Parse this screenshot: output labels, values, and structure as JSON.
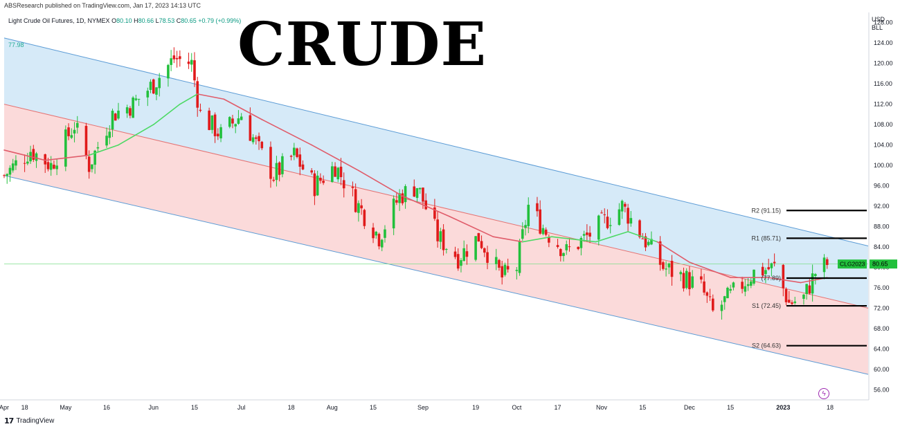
{
  "header": {
    "published": "ABSResearch published on TradingView.com, Jan 17, 2023 14:13 UTC",
    "symbol": "Light Crude Oil Futures, 1D, NYMEX",
    "ohlc": [
      {
        "label": "O",
        "value": "80.10"
      },
      {
        "label": "H",
        "value": "80.66"
      },
      {
        "label": "L",
        "value": "78.53"
      },
      {
        "label": "C",
        "value": "80.65"
      }
    ],
    "change": "+0.79 (+0.99%)",
    "ma_value": "77.98"
  },
  "title": "CRUDE",
  "unit": {
    "line1": "USD",
    "line2": "BLL"
  },
  "footer": {
    "brand": "TradingView",
    "logo": "17"
  },
  "icons": {
    "flash": "lightning-icon"
  },
  "colors": {
    "up": "#22c03c",
    "down": "#e01b1b",
    "ma": "#e05c6a",
    "ma_green": "#4cd964",
    "channel_line": "#5b9bd5",
    "upper_fill": "#d6eaf8",
    "lower_fill": "#fbdada",
    "last_price_bg": "#22c03c"
  },
  "chart_data": {
    "type": "candlestick",
    "yaxis": {
      "min": 54,
      "max": 130,
      "ticks": [
        "56.00",
        "60.00",
        "64.00",
        "68.00",
        "72.00",
        "76.00",
        "80.00",
        "84.00",
        "88.00",
        "92.00",
        "96.00",
        "100.00",
        "104.00",
        "108.00",
        "112.00",
        "116.00",
        "120.00",
        "124.00",
        "128.00"
      ]
    },
    "xaxis": {
      "start": "2022-04-11",
      "end": "2023-01-31",
      "ticks": [
        {
          "date": "2022-04-11",
          "label": "Apr"
        },
        {
          "date": "2022-04-18",
          "label": "18"
        },
        {
          "date": "2022-05-02",
          "label": "May"
        },
        {
          "date": "2022-05-16",
          "label": "16"
        },
        {
          "date": "2022-06-01",
          "label": "Jun"
        },
        {
          "date": "2022-06-15",
          "label": "15"
        },
        {
          "date": "2022-07-01",
          "label": "Jul"
        },
        {
          "date": "2022-07-18",
          "label": "18"
        },
        {
          "date": "2022-08-01",
          "label": "Aug"
        },
        {
          "date": "2022-08-15",
          "label": "15"
        },
        {
          "date": "2022-09-01",
          "label": "Sep"
        },
        {
          "date": "2022-09-19",
          "label": "19"
        },
        {
          "date": "2022-10-03",
          "label": "Oct"
        },
        {
          "date": "2022-10-17",
          "label": "17"
        },
        {
          "date": "2022-11-01",
          "label": "Nov"
        },
        {
          "date": "2022-11-15",
          "label": "15"
        },
        {
          "date": "2022-12-01",
          "label": "Dec"
        },
        {
          "date": "2022-12-15",
          "label": "15"
        },
        {
          "date": "2023-01-02",
          "label": "2023"
        },
        {
          "date": "2023-01-18",
          "label": "18"
        }
      ]
    },
    "price_path": [
      [
        "2022-04-11",
        98
      ],
      [
        "2022-04-20",
        103
      ],
      [
        "2022-04-27",
        100
      ],
      [
        "2022-05-05",
        108
      ],
      [
        "2022-05-10",
        100
      ],
      [
        "2022-05-18",
        110
      ],
      [
        "2022-05-25",
        112
      ],
      [
        "2022-06-01",
        116
      ],
      [
        "2022-06-08",
        121
      ],
      [
        "2022-06-14",
        120
      ],
      [
        "2022-06-17",
        110
      ],
      [
        "2022-06-24",
        106
      ],
      [
        "2022-07-01",
        110
      ],
      [
        "2022-07-07",
        103
      ],
      [
        "2022-07-12",
        98
      ],
      [
        "2022-07-19",
        102
      ],
      [
        "2022-07-26",
        96
      ],
      [
        "2022-08-02",
        100
      ],
      [
        "2022-08-10",
        92
      ],
      [
        "2022-08-17",
        86
      ],
      [
        "2022-08-24",
        94
      ],
      [
        "2022-08-30",
        96
      ],
      [
        "2022-09-06",
        86
      ],
      [
        "2022-09-13",
        82
      ],
      [
        "2022-09-20",
        86
      ],
      [
        "2022-09-28",
        78
      ],
      [
        "2022-10-03",
        80
      ],
      [
        "2022-10-07",
        92
      ],
      [
        "2022-10-13",
        87
      ],
      [
        "2022-10-20",
        83
      ],
      [
        "2022-10-27",
        86
      ],
      [
        "2022-11-04",
        90
      ],
      [
        "2022-11-08",
        92
      ],
      [
        "2022-11-15",
        86
      ],
      [
        "2022-11-22",
        80
      ],
      [
        "2022-11-29",
        78
      ],
      [
        "2022-12-05",
        76
      ],
      [
        "2022-12-09",
        71
      ],
      [
        "2022-12-16",
        75
      ],
      [
        "2022-12-23",
        79
      ],
      [
        "2022-12-30",
        80
      ],
      [
        "2023-01-04",
        73
      ],
      [
        "2023-01-09",
        74
      ],
      [
        "2023-01-13",
        79
      ],
      [
        "2023-01-17",
        80.65
      ]
    ],
    "ma_path": [
      [
        "2022-04-11",
        103
      ],
      [
        "2022-04-25",
        101
      ],
      [
        "2022-05-10",
        102
      ],
      [
        "2022-05-20",
        104
      ],
      [
        "2022-06-01",
        108
      ],
      [
        "2022-06-10",
        112
      ],
      [
        "2022-06-16",
        114
      ],
      [
        "2022-06-25",
        113
      ],
      [
        "2022-07-08",
        109
      ],
      [
        "2022-07-25",
        104
      ],
      [
        "2022-08-10",
        99
      ],
      [
        "2022-08-25",
        94
      ],
      [
        "2022-09-10",
        90
      ],
      [
        "2022-09-25",
        86
      ],
      [
        "2022-10-05",
        85
      ],
      [
        "2022-10-15",
        86
      ],
      [
        "2022-10-30",
        85
      ],
      [
        "2022-11-10",
        87
      ],
      [
        "2022-11-20",
        85
      ],
      [
        "2022-12-01",
        81
      ],
      [
        "2022-12-15",
        78
      ],
      [
        "2022-12-28",
        78
      ],
      [
        "2023-01-08",
        77
      ],
      [
        "2023-01-17",
        77.98
      ]
    ],
    "channel": {
      "upper": [
        [
          "2022-04-11",
          125
        ],
        [
          "2023-01-18",
          86
        ]
      ],
      "middle": [
        [
          "2022-04-11",
          112
        ],
        [
          "2023-01-31",
          72
        ]
      ],
      "lower": [
        [
          "2022-04-11",
          98
        ],
        [
          "2023-01-31",
          59
        ]
      ]
    },
    "levels": [
      {
        "label": "R2 (91.15)",
        "value": 91.15
      },
      {
        "label": "R1 (85.71)",
        "value": 85.71
      },
      {
        "label": "(77.89)",
        "value": 77.89
      },
      {
        "label": "S1 (72.45)",
        "value": 72.45
      },
      {
        "label": "S2 (64.63)",
        "value": 64.63
      }
    ],
    "last_price": {
      "symbol": "CLG2023",
      "value": "80.65"
    }
  }
}
